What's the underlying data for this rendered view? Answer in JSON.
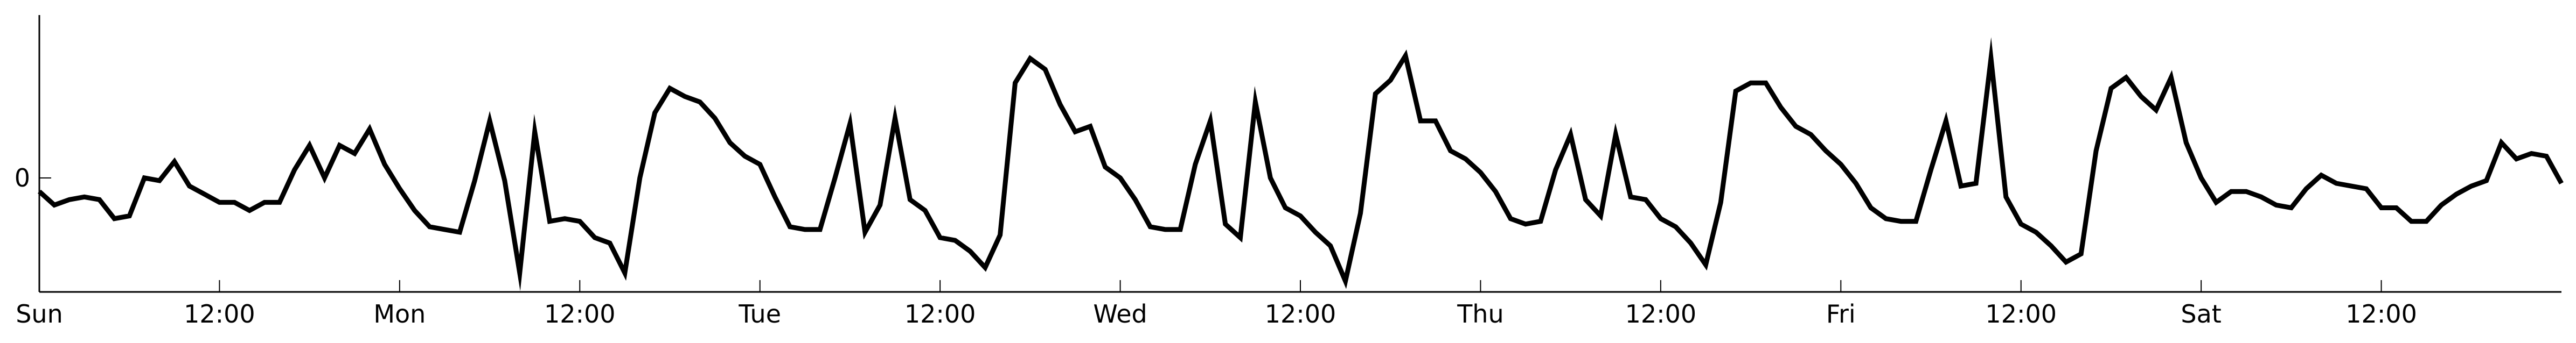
{
  "chart_data": {
    "type": "line",
    "title": "",
    "xlabel": "",
    "ylabel": "",
    "x_tick_labels": [
      "Sun",
      "12:00",
      "Mon",
      "12:00",
      "Tue",
      "12:00",
      "Wed",
      "12:00",
      "Thu",
      "12:00",
      "Fri",
      "12:00",
      "Sat",
      "12:00"
    ],
    "x_tick_hours": [
      0,
      12,
      24,
      36,
      48,
      60,
      72,
      84,
      96,
      108,
      120,
      132,
      144,
      156
    ],
    "xlim": [
      0,
      168
    ],
    "y_tick_labels": [
      "0"
    ],
    "y_tick_values": [
      0
    ],
    "ylim": [
      -4.2,
      6.0
    ],
    "grid": false,
    "line_color": "#000000",
    "series": [
      {
        "name": "",
        "hours": [
          0,
          1,
          2,
          3,
          4,
          5,
          6,
          7,
          8,
          9,
          10,
          11,
          12,
          13,
          14,
          15,
          16,
          17,
          18,
          19,
          20,
          21,
          22,
          23,
          24,
          25,
          26,
          27,
          28,
          29,
          30,
          31,
          32,
          33,
          34,
          35,
          36,
          37,
          38,
          39,
          40,
          41,
          42,
          43,
          44,
          45,
          46,
          47,
          48,
          49,
          50,
          51,
          52,
          53,
          54,
          55,
          56,
          57,
          58,
          59,
          60,
          61,
          62,
          63,
          64,
          65,
          66,
          67,
          68,
          69,
          70,
          71,
          72,
          73,
          74,
          75,
          76,
          77,
          78,
          79,
          80,
          81,
          82,
          83,
          84,
          85,
          86,
          87,
          88,
          89,
          90,
          91,
          92,
          93,
          94,
          95,
          96,
          97,
          98,
          99,
          100,
          101,
          102,
          103,
          104,
          105,
          106,
          107,
          108,
          109,
          110,
          111,
          112,
          113,
          114,
          115,
          116,
          117,
          118,
          119,
          120,
          121,
          122,
          123,
          124,
          125,
          126,
          127,
          128,
          129,
          130,
          131,
          132,
          133,
          134,
          135,
          136,
          137,
          138,
          139,
          140,
          141,
          142,
          143,
          144,
          145,
          146,
          147,
          148,
          149,
          150,
          151,
          152,
          153,
          154,
          155,
          156,
          157,
          158,
          159,
          160,
          161,
          162,
          163,
          164,
          165,
          166,
          167,
          168
        ],
        "values": [
          -0.5,
          -1.0,
          -0.8,
          -0.7,
          -0.8,
          -1.5,
          -1.4,
          0.0,
          -0.1,
          0.6,
          -0.3,
          -0.6,
          -0.9,
          -0.9,
          -1.2,
          -0.9,
          -0.9,
          0.3,
          1.2,
          0.0,
          1.2,
          0.9,
          1.8,
          0.5,
          -0.4,
          -1.2,
          -1.8,
          -1.9,
          -2.0,
          -0.1,
          2.1,
          -0.1,
          -3.5,
          1.7,
          -1.6,
          -1.5,
          -1.6,
          -2.2,
          -2.4,
          -3.5,
          0.0,
          2.4,
          3.3,
          3.0,
          2.8,
          2.2,
          1.3,
          0.8,
          0.5,
          -0.7,
          -1.8,
          -1.9,
          -1.9,
          0.0,
          2.0,
          -2.0,
          -1.0,
          2.2,
          -0.8,
          -1.2,
          -2.2,
          -2.3,
          -2.7,
          -3.3,
          -2.1,
          3.5,
          4.4,
          4.0,
          2.7,
          1.7,
          1.9,
          0.4,
          0.0,
          -0.8,
          -1.8,
          -1.9,
          -1.9,
          0.5,
          2.1,
          -1.7,
          -2.2,
          2.8,
          0.0,
          -1.1,
          -1.4,
          -2.0,
          -2.5,
          -3.8,
          -1.3,
          3.1,
          3.6,
          4.5,
          2.1,
          2.1,
          1.0,
          0.7,
          0.2,
          -0.5,
          -1.5,
          -1.7,
          -1.6,
          0.3,
          1.6,
          -0.8,
          -1.4,
          1.6,
          -0.7,
          -0.8,
          -1.5,
          -1.8,
          -2.4,
          -3.2,
          -0.9,
          3.2,
          3.5,
          3.5,
          2.6,
          1.9,
          1.6,
          1.0,
          0.5,
          -0.2,
          -1.1,
          -1.5,
          -1.6,
          -1.6,
          0.3,
          2.1,
          -0.3,
          -0.2,
          4.4,
          -0.7,
          -1.7,
          -2.0,
          -2.5,
          -3.1,
          -2.8,
          1.0,
          3.3,
          3.7,
          3.0,
          2.5,
          3.7,
          1.3,
          0.0,
          -0.9,
          -0.5,
          -0.5,
          -0.7,
          -1.0,
          -1.1,
          -0.4,
          0.1,
          -0.2,
          -0.3,
          -0.4,
          -1.1,
          -1.1,
          -1.6,
          -1.6,
          -1.0,
          -0.6,
          -0.3,
          -0.1,
          1.3,
          0.7,
          0.9,
          0.8,
          -0.2
        ]
      }
    ]
  }
}
